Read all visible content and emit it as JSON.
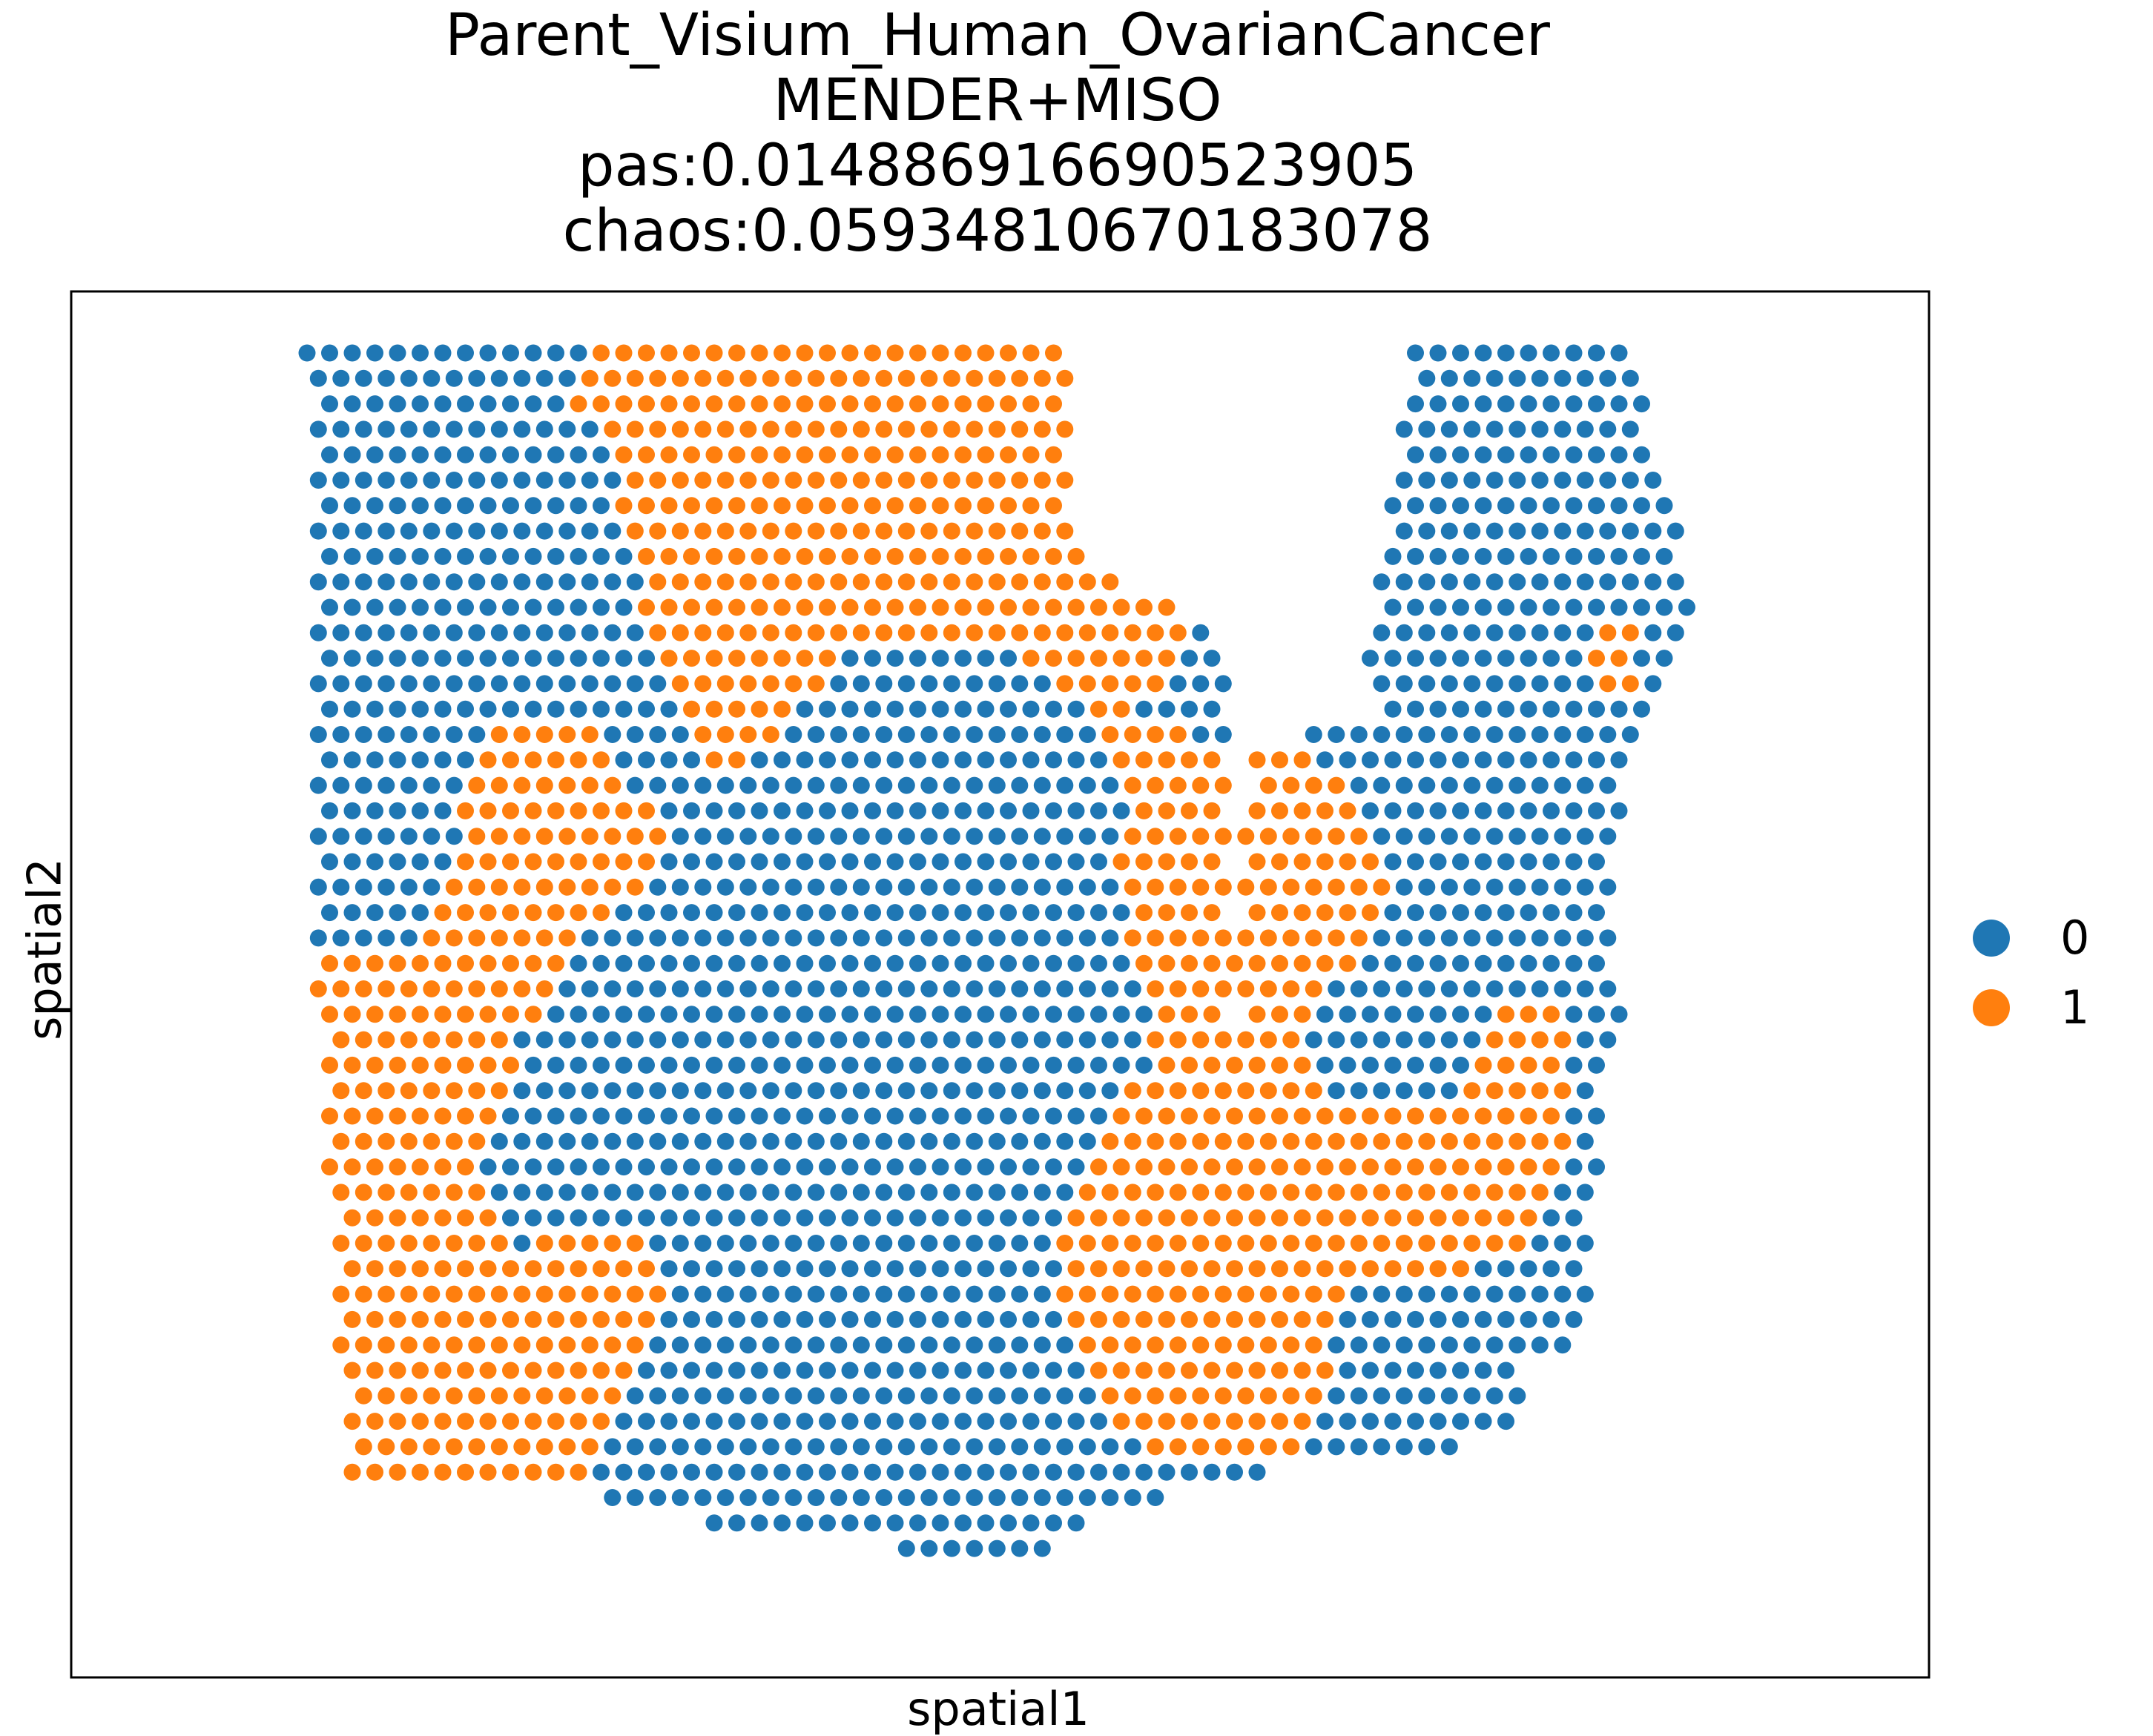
{
  "chart_data": {
    "type": "scatter",
    "title": [
      "Parent_Visium_Human_OvarianCancer",
      "MENDER+MISO",
      "pas:0.014886916690523905",
      "chaos:0.05934810670183078"
    ],
    "xlabel": "spatial1",
    "ylabel": "spatial2",
    "ticks_shown": false,
    "grid": false,
    "legend_placement": "right",
    "series": [
      {
        "name": "0",
        "color": "#1f77b4"
      },
      {
        "name": "1",
        "color": "#ff7f0e"
      }
    ]
  },
  "legend": [
    {
      "label": "0",
      "color": "#1f77b4"
    },
    {
      "label": "1",
      "color": "#ff7f0e"
    }
  ]
}
